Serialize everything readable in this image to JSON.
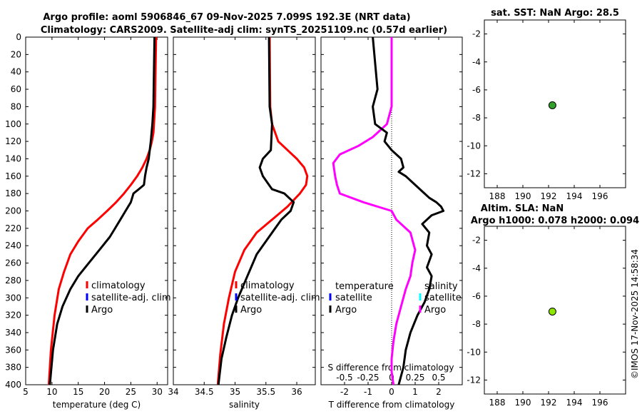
{
  "header": {
    "title_line1": "Argo profile: aoml 5906846_67 09-Nov-2025 7.099S 192.3E (NRT data)",
    "title_line2": "Climatology: CARS2009. Satellite-adj clim: synTS_20251109.nc (0.57d earlier)",
    "sst_title": "sat. SST: NaN Argo: 28.5",
    "sla_title1": "Altim. SLA: NaN",
    "sla_title2": "Argo h1000: 0.078 h2000: 0.094",
    "credit": "©IMOS 17-Nov-2025 14:58:34"
  },
  "colors": {
    "climatology": "#ff0000",
    "satellite_adj": "#0000ff",
    "argo": "#000000",
    "salinity_argo": "#ff00ff",
    "salinity_satellite": "#00ffff",
    "sst_marker": "#33a02c",
    "sla_marker": "#8ce600"
  },
  "chart_data": [
    {
      "type": "line",
      "id": "temperature",
      "xlabel": "temperature (deg C)",
      "ylabel": "",
      "xlim": [
        5,
        32
      ],
      "ylim": [
        400,
        0
      ],
      "xticks": [
        5,
        10,
        15,
        20,
        25,
        30
      ],
      "yticks": [
        0,
        20,
        40,
        60,
        80,
        100,
        120,
        140,
        160,
        180,
        200,
        220,
        240,
        260,
        280,
        300,
        320,
        340,
        360,
        380,
        400
      ],
      "legend": [
        "climatology",
        "satellite-adj. clim",
        "Argo"
      ],
      "series": [
        {
          "name": "climatology",
          "color": "#ff0000",
          "x": [
            29.8,
            29.7,
            29.6,
            29.3,
            29.0,
            28.6,
            28.0,
            27.2,
            26.2,
            25.0,
            23.7,
            22.2,
            20.5,
            18.7,
            16.8,
            15.0,
            13.5,
            12.3,
            11.3,
            10.5,
            9.8,
            9.4
          ],
          "y": [
            0,
            40,
            80,
            110,
            120,
            130,
            140,
            150,
            160,
            170,
            180,
            190,
            200,
            210,
            220,
            235,
            250,
            270,
            290,
            320,
            360,
            400
          ]
        },
        {
          "name": "Argo",
          "color": "#000000",
          "x": [
            29.5,
            29.4,
            29.3,
            29.1,
            28.8,
            28.6,
            28.4,
            28.0,
            27.7,
            27.5,
            26.5,
            25.5,
            25.0,
            24.0,
            23.0,
            22.0,
            21.0,
            19.0,
            17.0,
            15.0,
            13.5,
            12.0,
            11.0,
            10.2,
            9.6
          ],
          "y": [
            0,
            40,
            80,
            100,
            120,
            130,
            140,
            150,
            160,
            170,
            175,
            180,
            190,
            200,
            210,
            220,
            230,
            245,
            260,
            275,
            290,
            310,
            330,
            360,
            400
          ]
        }
      ]
    },
    {
      "type": "line",
      "id": "salinity",
      "xlabel": "salinity",
      "xlim": [
        34,
        36.3
      ],
      "ylim": [
        400,
        0
      ],
      "xticks": [
        34,
        34.5,
        35,
        35.5,
        36
      ],
      "legend": [
        "climatology",
        "satellite-adj. clim",
        "Argo"
      ],
      "series": [
        {
          "name": "climatology",
          "color": "#ff0000",
          "x": [
            35.56,
            35.57,
            35.6,
            35.7,
            35.85,
            36.0,
            36.12,
            36.17,
            36.15,
            36.05,
            35.85,
            35.6,
            35.35,
            35.15,
            35.0,
            34.9,
            34.82,
            34.76,
            34.72
          ],
          "y": [
            0,
            80,
            100,
            120,
            130,
            140,
            150,
            160,
            170,
            180,
            195,
            210,
            225,
            245,
            270,
            300,
            330,
            365,
            400
          ]
        },
        {
          "name": "Argo",
          "color": "#000000",
          "x": [
            35.55,
            35.56,
            35.6,
            35.58,
            35.45,
            35.4,
            35.45,
            35.5,
            35.55,
            35.6,
            35.8,
            35.95,
            35.9,
            35.75,
            35.55,
            35.35,
            35.2,
            35.05,
            34.95,
            34.86,
            34.78,
            34.73
          ],
          "y": [
            0,
            80,
            100,
            130,
            140,
            150,
            160,
            165,
            170,
            175,
            180,
            190,
            200,
            210,
            230,
            250,
            275,
            300,
            320,
            345,
            370,
            400
          ]
        }
      ]
    },
    {
      "type": "line",
      "id": "differences",
      "xlabel": "T difference from climatology",
      "top_xlabel": "S difference from climatology",
      "xlim": [
        -3,
        3
      ],
      "ylim": [
        400,
        0
      ],
      "xticks": [
        -2,
        -1,
        0,
        1,
        2
      ],
      "top_xticks": [
        -0.5,
        -0.25,
        0,
        0.25,
        0.5
      ],
      "legend_temperature_title": "temperature",
      "legend_salinity_title": "salinity",
      "legend": [
        "satellite",
        "Argo"
      ],
      "series": [
        {
          "name": "T Argo",
          "color": "#000000",
          "x": [
            -0.8,
            -0.7,
            -0.6,
            -0.8,
            -0.7,
            -0.2,
            -0.3,
            0.0,
            0.4,
            0.5,
            0.3,
            0.6,
            1.0,
            1.4,
            1.6,
            1.9,
            2.1,
            2.2,
            1.7,
            1.3,
            1.6,
            1.5,
            1.7,
            1.5,
            1.7,
            1.6,
            1.4,
            1.1,
            0.8,
            0.6,
            0.5,
            0.3
          ],
          "y": [
            0,
            30,
            60,
            80,
            100,
            110,
            120,
            130,
            140,
            150,
            155,
            160,
            170,
            180,
            185,
            190,
            195,
            200,
            205,
            215,
            225,
            240,
            250,
            265,
            275,
            290,
            305,
            320,
            340,
            360,
            380,
            400
          ]
        },
        {
          "name": "S Argo",
          "color": "#ff00ff",
          "x": [
            0.0,
            0.0,
            0.0,
            -0.05,
            -0.2,
            -0.35,
            -0.55,
            -0.62,
            -0.6,
            -0.58,
            -0.55,
            -0.3,
            0.0,
            0.05,
            0.2,
            0.25,
            0.22,
            0.2,
            0.15,
            0.1,
            0.05,
            0.02,
            0.0,
            0.0,
            0.02
          ],
          "y": [
            0,
            40,
            80,
            100,
            115,
            125,
            135,
            145,
            160,
            170,
            180,
            190,
            200,
            210,
            225,
            245,
            260,
            275,
            290,
            310,
            330,
            350,
            370,
            385,
            400
          ]
        }
      ]
    },
    {
      "type": "scatter",
      "id": "sst",
      "xlim": [
        187,
        198
      ],
      "ylim": [
        -13,
        -1
      ],
      "xticks": [
        188,
        190,
        192,
        194,
        196
      ],
      "yticks": [
        -2,
        -4,
        -6,
        -8,
        -10,
        -12
      ],
      "points": [
        {
          "x": 192.3,
          "y": -7.1
        }
      ]
    },
    {
      "type": "scatter",
      "id": "sla",
      "xlim": [
        187,
        198
      ],
      "ylim": [
        -13,
        -1
      ],
      "xticks": [
        188,
        190,
        192,
        194,
        196
      ],
      "yticks": [
        -2,
        -4,
        -6,
        -8,
        -10,
        -12
      ],
      "points": [
        {
          "x": 192.3,
          "y": -7.1
        }
      ]
    }
  ]
}
